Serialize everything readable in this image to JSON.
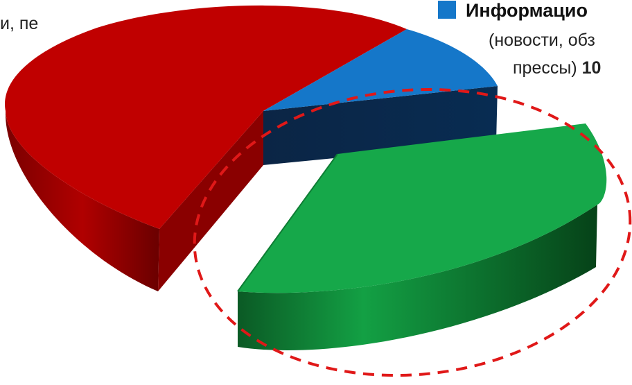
{
  "chart_data": {
    "type": "pie",
    "style": "3d-exploded",
    "slices": [
      {
        "label_text": "и, пе",
        "value": 58,
        "color": "#c00000"
      },
      {
        "label_text": "Информацио",
        "desc_line1": "(новости, обз",
        "desc_line2": "прессы)",
        "value_text": "10",
        "value": 10,
        "color": "#1577c9"
      },
      {
        "value": 32,
        "color": "#16a84a",
        "highlighted": true
      }
    ],
    "highlight_color": "#e01818"
  }
}
